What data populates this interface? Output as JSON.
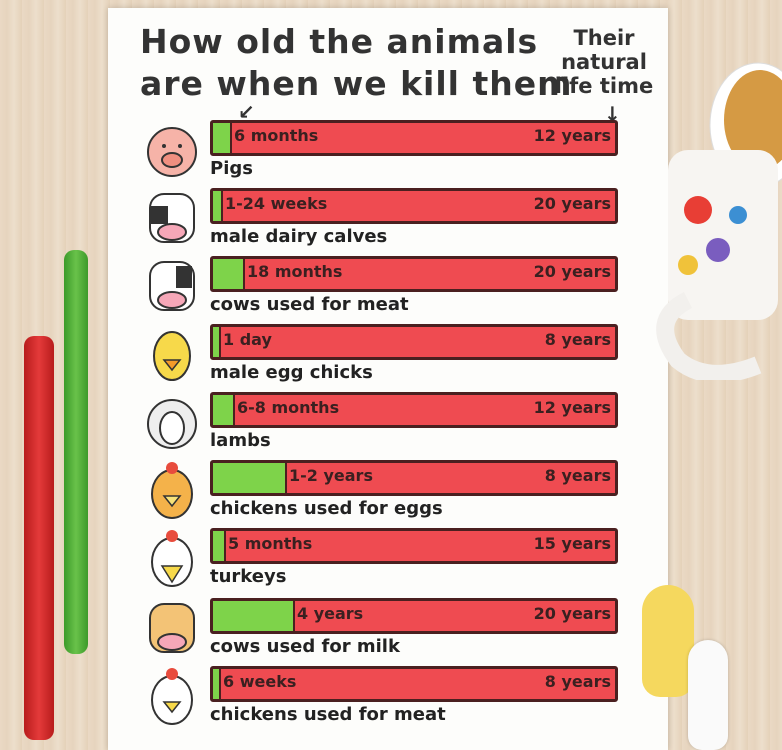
{
  "title": [
    "How old the animals",
    "are when we kill them"
  ],
  "natural_label": [
    "Their",
    "natural",
    "life time"
  ],
  "colors": {
    "killed": "#7ed34a",
    "lifetime": "#ef4b51",
    "outline": "#4a2020"
  },
  "chart_data": {
    "type": "bar",
    "title": "How old the animals are when we kill them",
    "categories": [
      "Pigs",
      "male dairy calves",
      "cows used for meat",
      "male egg chicks",
      "lambs",
      "chickens used for eggs",
      "turkeys",
      "cows used for milk",
      "chickens used for meat"
    ],
    "series": [
      {
        "name": "",
        "labels": [
          "6 months",
          "1-24 weeks",
          "18 months",
          "1 day",
          "6-8 months",
          "1-2 years",
          "5 months",
          "4 years",
          "6 weeks"
        ],
        "fraction": [
          0.042,
          0.02,
          0.075,
          0.003,
          0.05,
          0.18,
          0.028,
          0.2,
          0.015
        ]
      },
      {
        "name": "Their natural life time",
        "labels": [
          "12 years",
          "20 years",
          "20 years",
          "8 years",
          "12 years",
          "8 years",
          "15 years",
          "20 years",
          "8 years"
        ]
      }
    ]
  },
  "rows": [
    {
      "animal": "pig-icon",
      "name": "Pigs",
      "killed": "6 months",
      "lifetime": "12 years"
    },
    {
      "animal": "calf-icon",
      "name": "male dairy calves",
      "killed": "1-24 weeks",
      "lifetime": "20 years"
    },
    {
      "animal": "cow-icon",
      "name": "cows used for meat",
      "killed": "18 months",
      "lifetime": "20 years"
    },
    {
      "animal": "chick-icon",
      "name": "male egg chicks",
      "killed": "1 day",
      "lifetime": "8 years"
    },
    {
      "animal": "lamb-icon",
      "name": "lambs",
      "killed": "6-8 months",
      "lifetime": "12 years"
    },
    {
      "animal": "hen-icon",
      "name": "chickens used for eggs",
      "killed": "1-2 years",
      "lifetime": "8 years"
    },
    {
      "animal": "turkey-icon",
      "name": "turkeys",
      "killed": "5 months",
      "lifetime": "15 years"
    },
    {
      "animal": "dairy-cow-icon",
      "name": "cows used for milk",
      "killed": "4 years",
      "lifetime": "20 years"
    },
    {
      "animal": "broiler-icon",
      "name": "chickens used for meat",
      "killed": "6 weeks",
      "lifetime": "8 years"
    }
  ]
}
